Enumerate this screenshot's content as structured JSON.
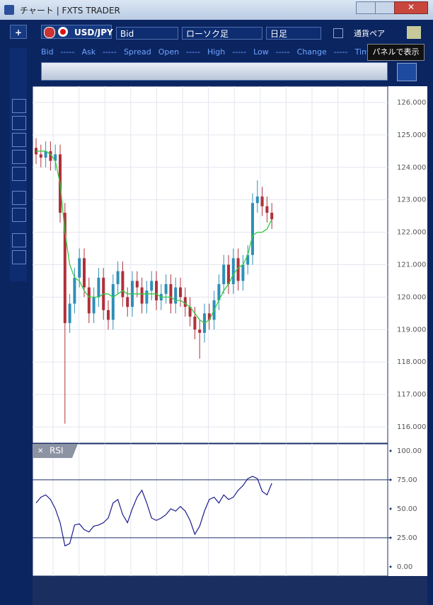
{
  "window": {
    "title": "チャート | FXTS TRADER"
  },
  "toolbar": {
    "add": "+",
    "pair": "USD/JPY",
    "price": "Bid",
    "chart_kind": "ローソク足",
    "period": "日足",
    "pair_toggle": "通貨ペア",
    "tooltip": "パネルで表示"
  },
  "quote_bar": [
    "Bid",
    "-----",
    "Ask",
    "-----",
    "Spread",
    "Open",
    "-----",
    "High",
    "-----",
    "Low",
    "-----",
    "Change",
    "-----",
    "Tim"
  ],
  "chart_data": [
    {
      "type": "candlestick",
      "grid": true,
      "up_color": "#2f8fb8",
      "down_color": "#b0303a",
      "ylim": [
        115.5,
        126.5
      ],
      "yticks": [
        {
          "value": 116,
          "label": "116.000"
        },
        {
          "value": 117,
          "label": "117.000"
        },
        {
          "value": 118,
          "label": "118.000"
        },
        {
          "value": 119,
          "label": "119.000"
        },
        {
          "value": 120,
          "label": "120.000"
        },
        {
          "value": 121,
          "label": "121.000"
        },
        {
          "value": 122,
          "label": "122.000"
        },
        {
          "value": 123,
          "label": "123.000"
        },
        {
          "value": 124,
          "label": "124.000"
        },
        {
          "value": 125,
          "label": "125.000"
        },
        {
          "value": 126,
          "label": "126.000"
        }
      ],
      "open": [
        124.6,
        124.4,
        124.3,
        124.5,
        124.2,
        124.4,
        122.6,
        119.2,
        119.8,
        120.6,
        121.2,
        120.3,
        119.5,
        120.0,
        120.6,
        119.6,
        119.3,
        120.4,
        120.8,
        120.0,
        119.7,
        120.5,
        120.3,
        119.8,
        120.2,
        120.5,
        119.9,
        120.1,
        120.4,
        119.8,
        120.3,
        120.0,
        119.7,
        119.4,
        119.0,
        118.9,
        119.5,
        119.3,
        119.9,
        120.4,
        121.0,
        120.4,
        121.2,
        120.5,
        121.0,
        121.3,
        122.9,
        123.1,
        122.8,
        122.6
      ],
      "high": [
        124.9,
        124.7,
        124.8,
        124.8,
        124.7,
        124.7,
        122.9,
        120.1,
        120.9,
        121.5,
        121.5,
        120.6,
        120.3,
        120.9,
        120.9,
        119.9,
        120.7,
        121.1,
        121.1,
        120.3,
        120.8,
        120.8,
        120.6,
        120.5,
        120.8,
        120.8,
        120.4,
        120.7,
        120.7,
        120.6,
        120.6,
        120.3,
        120.0,
        119.7,
        119.3,
        119.8,
        119.8,
        120.2,
        120.7,
        121.3,
        121.3,
        121.5,
        121.5,
        121.3,
        121.6,
        123.2,
        123.6,
        123.4,
        123.1,
        122.9
      ],
      "low": [
        124.1,
        124.0,
        124.0,
        123.9,
        123.9,
        122.3,
        116.1,
        118.9,
        119.5,
        120.3,
        120.0,
        119.2,
        119.2,
        119.7,
        119.3,
        119.0,
        119.0,
        120.1,
        119.7,
        119.4,
        119.4,
        120.0,
        119.5,
        119.5,
        119.9,
        119.6,
        119.6,
        119.8,
        119.5,
        119.5,
        119.7,
        119.4,
        119.1,
        118.7,
        118.1,
        118.6,
        119.0,
        119.0,
        119.6,
        120.1,
        120.1,
        120.1,
        120.2,
        120.2,
        120.7,
        121.0,
        122.6,
        122.5,
        122.3,
        122.1
      ],
      "close": [
        124.4,
        124.3,
        124.5,
        124.2,
        124.4,
        122.6,
        119.2,
        119.8,
        120.6,
        121.2,
        120.3,
        119.5,
        120.0,
        120.6,
        119.6,
        119.3,
        120.4,
        120.8,
        120.0,
        119.7,
        120.5,
        120.3,
        119.8,
        120.2,
        120.5,
        119.9,
        120.1,
        120.4,
        119.8,
        120.3,
        120.0,
        119.7,
        119.4,
        119.0,
        118.9,
        119.5,
        119.3,
        119.9,
        120.4,
        121.0,
        120.4,
        121.2,
        120.5,
        121.0,
        121.3,
        122.9,
        123.1,
        122.8,
        122.6,
        122.4
      ],
      "lines": [
        {
          "color": "#2ecc40",
          "values": [
            124.5,
            124.5,
            124.5,
            124.4,
            124.2,
            123.5,
            122.0,
            121.0,
            120.6,
            120.5,
            120.2,
            120.0,
            120.0,
            120.0,
            120.1,
            120.1,
            120.0,
            120.1,
            120.2,
            120.1,
            120.1,
            120.1,
            120.1,
            120.1,
            120.1,
            120.1,
            120.0,
            120.0,
            120.0,
            119.9,
            119.9,
            119.8,
            119.7,
            119.5,
            119.3,
            119.2,
            119.3,
            119.6,
            119.9,
            120.2,
            120.4,
            120.7,
            120.9,
            121.0,
            121.3,
            121.9,
            122.0,
            122.0,
            122.1,
            122.4
          ]
        }
      ]
    },
    {
      "type": "line",
      "title": "RSI",
      "grid": true,
      "ylim": [
        -8,
        106
      ],
      "levels": [
        75,
        25
      ],
      "yticks": [
        {
          "value": 0,
          "label": "0.00"
        },
        {
          "value": 25,
          "label": "25.00"
        },
        {
          "value": 50,
          "label": "50.00"
        },
        {
          "value": 75,
          "label": "75.00"
        },
        {
          "value": 100,
          "label": "100.00"
        }
      ],
      "series": [
        {
          "color": "#1c1c8a",
          "values": [
            55,
            60,
            62,
            58,
            50,
            38,
            18,
            20,
            36,
            37,
            32,
            30,
            35,
            36,
            38,
            42,
            55,
            58,
            45,
            38,
            50,
            60,
            66,
            55,
            42,
            40,
            42,
            45,
            50,
            48,
            52,
            48,
            40,
            28,
            35,
            48,
            58,
            60,
            55,
            62,
            58,
            60,
            66,
            70,
            76,
            78,
            76,
            65,
            62,
            72
          ]
        }
      ]
    }
  ]
}
